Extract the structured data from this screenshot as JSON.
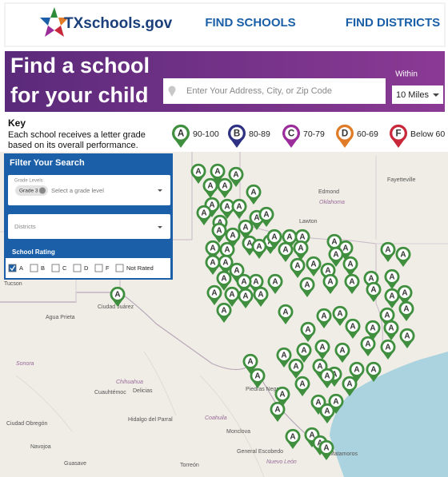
{
  "header": {
    "logo": "TXschools.gov",
    "nav": [
      "FIND SCHOOLS",
      "FIND DISTRICTS"
    ]
  },
  "banner": {
    "title_lines": [
      "Find a school",
      "for your child"
    ],
    "search_placeholder": "Enter Your Address, City, or Zip Code",
    "within_label": "Within",
    "within_value": "10 Miles"
  },
  "key": {
    "title": "Key",
    "description_lines": [
      "Each school receives a letter grade",
      "based on its overall performance."
    ],
    "grades": [
      {
        "letter": "A",
        "range": "90-100",
        "color": "#3f8f3f"
      },
      {
        "letter": "B",
        "range": "80-89",
        "color": "#2e3184"
      },
      {
        "letter": "C",
        "range": "70-79",
        "color": "#9b2d9b"
      },
      {
        "letter": "D",
        "range": "60-69",
        "color": "#e07b28"
      },
      {
        "letter": "F",
        "range": "Below 60",
        "color": "#c8283a"
      }
    ]
  },
  "filter": {
    "title": "Filter Your Search",
    "grade_levels_label": "Grade Levels",
    "grade_chip": "Grade 3",
    "grade_placeholder": "Select a grade level",
    "districts_placeholder": "Districts",
    "school_rating_label": "School Rating",
    "ratings": [
      "A",
      "B",
      "C",
      "D",
      "F",
      "Not Rated"
    ]
  },
  "map": {
    "place_labels": [
      "Tucson",
      "Ciudad Juárez",
      "Agua Prieta",
      "Sonora",
      "Chihuahua",
      "Cuauhtémoc",
      "Delicias",
      "Ciudad Obregón",
      "Hidalgo del Parral",
      "Coahuila",
      "Monclova",
      "Torreón",
      "General Escobedo",
      "Nuevo León",
      "Matamoros",
      "Piedras Negras",
      "Lawton",
      "Edmond",
      "Oklahoma",
      "Fayetteville",
      "Navojoa",
      "Guasave"
    ],
    "markers": [
      "A",
      "A",
      "A",
      "A",
      "A",
      "A",
      "A",
      "A",
      "A",
      "A",
      "A",
      "A",
      "A",
      "A",
      "A",
      "A",
      "A",
      "A",
      "A",
      "A",
      "A",
      "A",
      "A",
      "A",
      "A",
      "A",
      "A",
      "A",
      "A",
      "A",
      "A",
      "A",
      "A",
      "A",
      "A",
      "A",
      "A",
      "A",
      "A",
      "A",
      "A",
      "A",
      "A",
      "A",
      "A",
      "A",
      "A",
      "A",
      "A",
      "A",
      "A",
      "A",
      "A",
      "A",
      "A",
      "A",
      "A",
      "A",
      "A",
      "A",
      "A",
      "A",
      "A",
      "A",
      "A",
      "A",
      "A",
      "A",
      "A",
      "A",
      "A",
      "A",
      "A",
      "A",
      "A",
      "A",
      "A",
      "A",
      "A",
      "A",
      "A",
      "A",
      "A",
      "A",
      "A",
      "A",
      "A",
      "A",
      "A",
      "A",
      "A"
    ]
  }
}
